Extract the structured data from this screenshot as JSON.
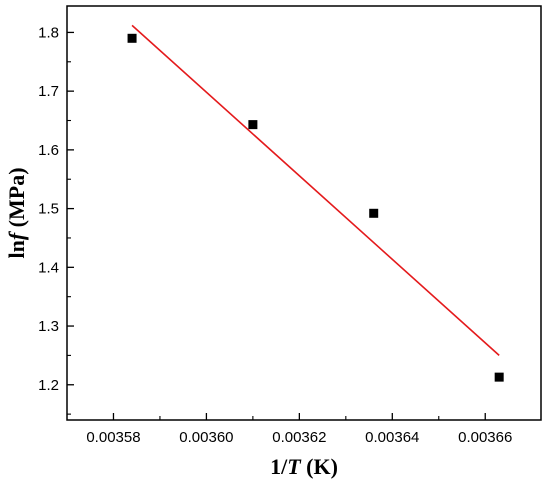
{
  "chart_data": {
    "type": "scatter",
    "xlabel_parts": [
      "1/",
      "T",
      " (K)"
    ],
    "ylabel_parts": [
      "ln",
      "f",
      " (MPa)"
    ],
    "xlim": [
      0.00357,
      0.003672
    ],
    "ylim": [
      1.14,
      1.845
    ],
    "x_ticks": [
      0.00358,
      0.0036,
      0.00362,
      0.00364,
      0.00366
    ],
    "x_tick_labels": [
      "0.00358",
      "0.00360",
      "0.00362",
      "0.00364",
      "0.00366"
    ],
    "y_ticks": [
      1.2,
      1.3,
      1.4,
      1.5,
      1.6,
      1.7,
      1.8
    ],
    "y_tick_labels": [
      "1.2",
      "1.3",
      "1.4",
      "1.5",
      "1.6",
      "1.7",
      "1.8"
    ],
    "series": [
      {
        "marker": "square",
        "color": "#000000",
        "points": [
          {
            "x": 0.003584,
            "y": 1.79
          },
          {
            "x": 0.00361,
            "y": 1.643
          },
          {
            "x": 0.003636,
            "y": 1.492
          },
          {
            "x": 0.003663,
            "y": 1.213
          }
        ]
      }
    ],
    "fit_line": {
      "color": "#e41a1c",
      "x": [
        0.003584,
        0.003663
      ],
      "y": [
        1.812,
        1.25
      ]
    },
    "grid": false,
    "legend": "none"
  }
}
